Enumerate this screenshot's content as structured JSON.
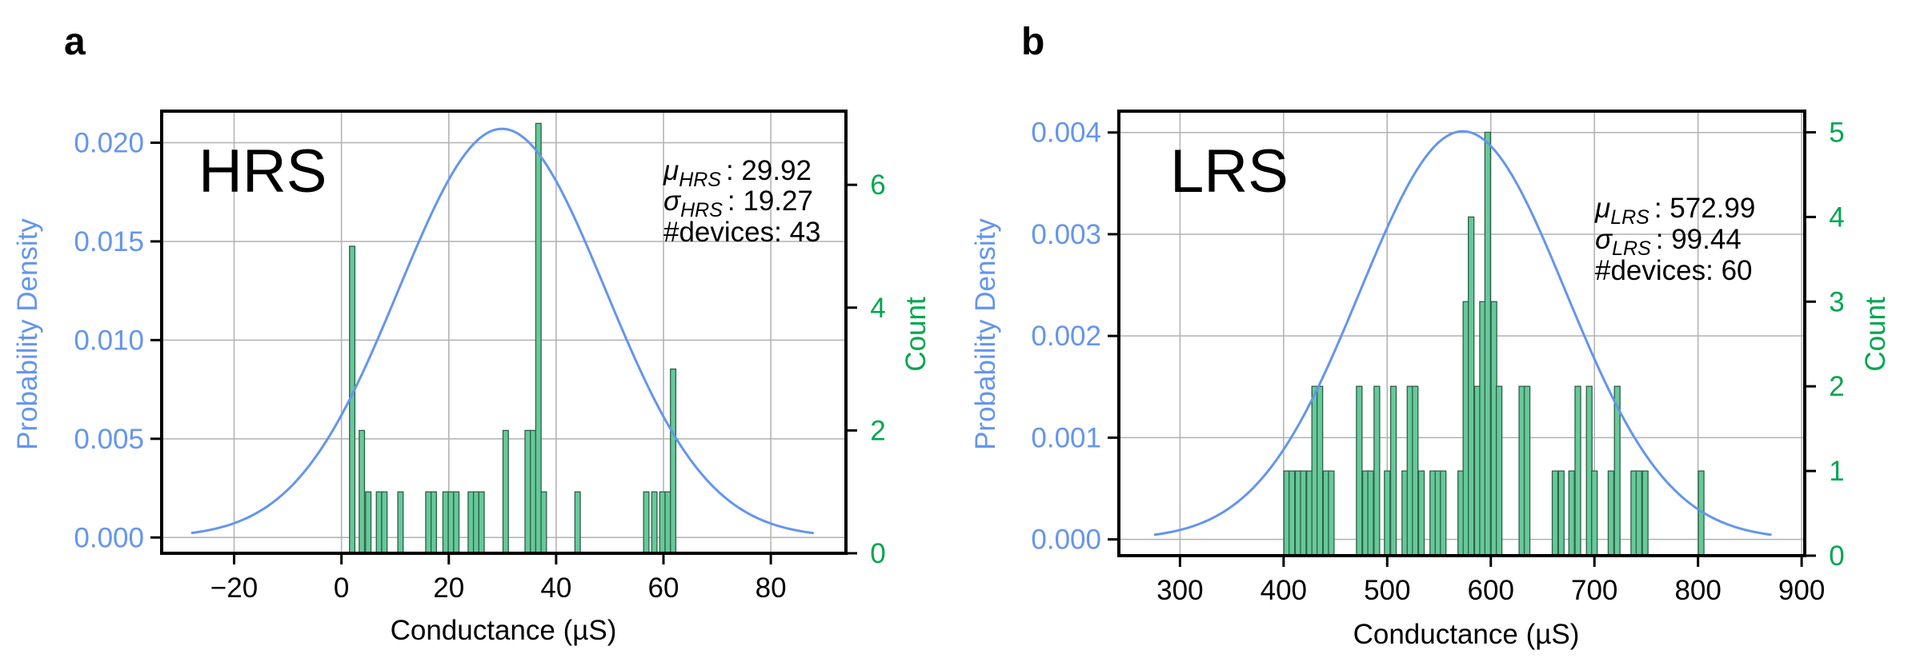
{
  "colors": {
    "curve": "#6495ED",
    "left_axis": "#6495ED",
    "right_axis": "#00A650",
    "bar_fill": "#66C99A",
    "bar_edge": "#2E5E45",
    "grid": "#b0b0b0",
    "frame": "#000000"
  },
  "chart_data": [
    {
      "panel_label": "a",
      "type": "bar+line",
      "state_label": "HRS",
      "xlabel": "Conductance (µS)",
      "ylabel_left": "Probability Density",
      "ylabel_right": "Count",
      "xlim": [
        -33.5,
        94
      ],
      "ylim_left": [
        -0.0008,
        0.0216
      ],
      "ylim_right": [
        0,
        7.2
      ],
      "x_ticks": [
        -20,
        0,
        20,
        40,
        60,
        80
      ],
      "x_tick_labels": [
        "−20",
        "0",
        "20",
        "40",
        "60",
        "80"
      ],
      "y_left_ticks": [
        0.0,
        0.005,
        0.01,
        0.015,
        0.02
      ],
      "y_left_tick_labels": [
        "0.000",
        "0.005",
        "0.010",
        "0.015",
        "0.020"
      ],
      "y_right_ticks": [
        0,
        2,
        4,
        6
      ],
      "y_right_tick_labels": [
        "0",
        "2",
        "4",
        "6"
      ],
      "mu": 29.92,
      "sigma": 19.27,
      "curve_range": [
        -28,
        88
      ],
      "bin_width": 1.0,
      "bins": [
        {
          "x": 2.0,
          "count": 5
        },
        {
          "x": 3.8,
          "count": 2
        },
        {
          "x": 5.0,
          "count": 1
        },
        {
          "x": 7.0,
          "count": 1
        },
        {
          "x": 8.0,
          "count": 1
        },
        {
          "x": 11.0,
          "count": 1
        },
        {
          "x": 16.2,
          "count": 1
        },
        {
          "x": 17.2,
          "count": 1
        },
        {
          "x": 19.4,
          "count": 1
        },
        {
          "x": 20.4,
          "count": 1
        },
        {
          "x": 21.4,
          "count": 1
        },
        {
          "x": 24.1,
          "count": 1
        },
        {
          "x": 25.1,
          "count": 1
        },
        {
          "x": 26.1,
          "count": 1
        },
        {
          "x": 30.6,
          "count": 2
        },
        {
          "x": 34.7,
          "count": 2
        },
        {
          "x": 35.7,
          "count": 2
        },
        {
          "x": 36.7,
          "count": 7
        },
        {
          "x": 37.7,
          "count": 1
        },
        {
          "x": 44.0,
          "count": 1
        },
        {
          "x": 56.8,
          "count": 1
        },
        {
          "x": 58.3,
          "count": 1
        },
        {
          "x": 59.8,
          "count": 1
        },
        {
          "x": 60.8,
          "count": 1
        },
        {
          "x": 61.8,
          "count": 3
        }
      ],
      "stats": {
        "mu_symbol": "μ",
        "mu_sub": "HRS",
        "mu_value": ": 29.92",
        "sigma_symbol": "σ",
        "sigma_sub": "HRS",
        "sigma_value": ": 19.27",
        "devices": "#devices: 43"
      }
    },
    {
      "panel_label": "b",
      "type": "bar+line",
      "state_label": "LRS",
      "xlabel": "Conductance (µS)",
      "ylabel_left": "Probability Density",
      "ylabel_right": "Count",
      "xlim": [
        241,
        903
      ],
      "ylim_left": [
        -0.00016,
        0.00421
      ],
      "ylim_right": [
        0,
        5.25
      ],
      "x_ticks": [
        300,
        400,
        500,
        600,
        700,
        800,
        900
      ],
      "x_tick_labels": [
        "300",
        "400",
        "500",
        "600",
        "700",
        "800",
        "900"
      ],
      "y_left_ticks": [
        0.0,
        0.001,
        0.002,
        0.003,
        0.004
      ],
      "y_left_tick_labels": [
        "0.000",
        "0.001",
        "0.002",
        "0.003",
        "0.004"
      ],
      "y_right_ticks": [
        0,
        1,
        2,
        3,
        4,
        5
      ],
      "y_right_tick_labels": [
        "0",
        "1",
        "2",
        "3",
        "4",
        "5"
      ],
      "mu": 572.99,
      "sigma": 99.44,
      "curve_range": [
        275,
        871
      ],
      "bin_width": 5.4,
      "bins": [
        {
          "x": 403,
          "count": 1
        },
        {
          "x": 408,
          "count": 1
        },
        {
          "x": 414,
          "count": 1
        },
        {
          "x": 419,
          "count": 1
        },
        {
          "x": 425,
          "count": 1
        },
        {
          "x": 430,
          "count": 2
        },
        {
          "x": 435,
          "count": 2
        },
        {
          "x": 441,
          "count": 1
        },
        {
          "x": 446,
          "count": 1
        },
        {
          "x": 473,
          "count": 2
        },
        {
          "x": 479,
          "count": 1
        },
        {
          "x": 484,
          "count": 1
        },
        {
          "x": 490,
          "count": 2
        },
        {
          "x": 500,
          "count": 1
        },
        {
          "x": 506,
          "count": 2
        },
        {
          "x": 517,
          "count": 1
        },
        {
          "x": 522,
          "count": 2
        },
        {
          "x": 527,
          "count": 2
        },
        {
          "x": 533,
          "count": 1
        },
        {
          "x": 544,
          "count": 1
        },
        {
          "x": 549,
          "count": 1
        },
        {
          "x": 554,
          "count": 1
        },
        {
          "x": 571,
          "count": 1
        },
        {
          "x": 576,
          "count": 3
        },
        {
          "x": 581,
          "count": 4
        },
        {
          "x": 587,
          "count": 2
        },
        {
          "x": 592,
          "count": 3
        },
        {
          "x": 597,
          "count": 5
        },
        {
          "x": 603,
          "count": 3
        },
        {
          "x": 608,
          "count": 2
        },
        {
          "x": 630,
          "count": 2
        },
        {
          "x": 635,
          "count": 2
        },
        {
          "x": 662,
          "count": 1
        },
        {
          "x": 668,
          "count": 1
        },
        {
          "x": 678,
          "count": 1
        },
        {
          "x": 684,
          "count": 2
        },
        {
          "x": 695,
          "count": 2
        },
        {
          "x": 700,
          "count": 1
        },
        {
          "x": 716,
          "count": 1
        },
        {
          "x": 722,
          "count": 2
        },
        {
          "x": 738,
          "count": 1
        },
        {
          "x": 743,
          "count": 1
        },
        {
          "x": 749,
          "count": 1
        },
        {
          "x": 803,
          "count": 1
        }
      ],
      "stats": {
        "mu_symbol": "μ",
        "mu_sub": "LRS",
        "mu_value": ": 572.99",
        "sigma_symbol": "σ",
        "sigma_sub": "LRS",
        "sigma_value": ": 99.44",
        "devices": "#devices: 60"
      }
    }
  ]
}
